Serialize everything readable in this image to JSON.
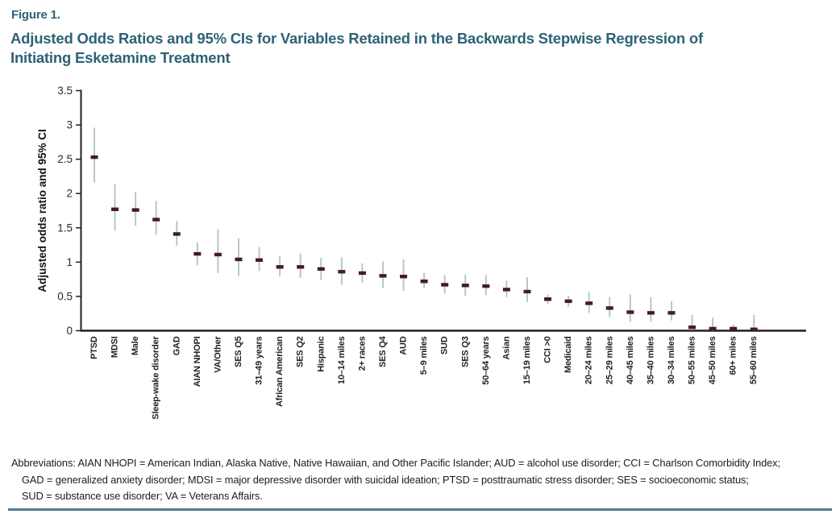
{
  "figure": {
    "label": "Figure 1.",
    "title_lines": [
      "Adjusted Odds Ratios and 95% CIs for Variables Retained in the Backwards Stepwise Regression of",
      "Initiating Esketamine Treatment"
    ]
  },
  "footnote": {
    "line1": "Abbreviations: AIAN NHOPI = American Indian, Alaska Native, Native Hawaiian, and Other Pacific Islander; AUD = alcohol use disorder; CCI = Charlson Comorbidity Index;",
    "line2": "GAD = generalized anxiety disorder; MDSI = major depressive disorder with suicidal ideation; PTSD = posttraumatic stress disorder; SES = socioeconomic status;",
    "line3": "SUD = substance use disorder; VA = Veterans Affairs."
  },
  "colors": {
    "title_teal": "#2d6276",
    "marker": "#441a2e",
    "whisker": "#b9c5cd",
    "axis": "#231f20",
    "tick_text": "#2a2a2a",
    "bottom_rule": "#567c90"
  },
  "chart_data": {
    "type": "scatter",
    "subtype": "point-estimate-with-95ci-errorbars",
    "title": "Adjusted Odds Ratios and 95% CIs for Variables Retained in the Backwards Stepwise Regression of Initiating Esketamine Treatment",
    "xlabel": "",
    "ylabel": "Adjusted odds ratio and 95% CI",
    "ylim": [
      0,
      3.5
    ],
    "yticks": [
      "0",
      "0.5",
      "1",
      "1.5",
      "2",
      "2.5",
      "3",
      "3.5"
    ],
    "grid": false,
    "legend": "none",
    "points": [
      {
        "label": "PTSD",
        "or": 2.53,
        "ci_low": 2.16,
        "ci_high": 2.96
      },
      {
        "label": "MDSI",
        "or": 1.77,
        "ci_low": 1.46,
        "ci_high": 2.14
      },
      {
        "label": "Male",
        "or": 1.76,
        "ci_low": 1.53,
        "ci_high": 2.02
      },
      {
        "label": "Sleep-wake disorder",
        "or": 1.62,
        "ci_low": 1.4,
        "ci_high": 1.89
      },
      {
        "label": "GAD",
        "or": 1.41,
        "ci_low": 1.24,
        "ci_high": 1.6
      },
      {
        "label": "AIAN NHOPI",
        "or": 1.12,
        "ci_low": 0.95,
        "ci_high": 1.29
      },
      {
        "label": "VA/Other",
        "or": 1.11,
        "ci_low": 0.84,
        "ci_high": 1.48
      },
      {
        "label": "SES Q5",
        "or": 1.04,
        "ci_low": 0.8,
        "ci_high": 1.35
      },
      {
        "label": "31–49 years",
        "or": 1.03,
        "ci_low": 0.87,
        "ci_high": 1.22
      },
      {
        "label": "African American",
        "or": 0.93,
        "ci_low": 0.79,
        "ci_high": 1.09
      },
      {
        "label": "SES Q2",
        "or": 0.93,
        "ci_low": 0.77,
        "ci_high": 1.12
      },
      {
        "label": "Hispanic",
        "or": 0.9,
        "ci_low": 0.74,
        "ci_high": 1.06
      },
      {
        "label": "10–14 miles",
        "or": 0.86,
        "ci_low": 0.67,
        "ci_high": 1.07
      },
      {
        "label": "2+ races",
        "or": 0.84,
        "ci_low": 0.7,
        "ci_high": 0.98
      },
      {
        "label": "SES Q4",
        "or": 0.8,
        "ci_low": 0.62,
        "ci_high": 1.01
      },
      {
        "label": "AUD",
        "or": 0.79,
        "ci_low": 0.58,
        "ci_high": 1.04
      },
      {
        "label": "5–9 miles",
        "or": 0.72,
        "ci_low": 0.62,
        "ci_high": 0.84
      },
      {
        "label": "SUD",
        "or": 0.67,
        "ci_low": 0.54,
        "ci_high": 0.81
      },
      {
        "label": "SES Q3",
        "or": 0.66,
        "ci_low": 0.51,
        "ci_high": 0.82
      },
      {
        "label": "50–64 years",
        "or": 0.65,
        "ci_low": 0.52,
        "ci_high": 0.81
      },
      {
        "label": "Asian",
        "or": 0.6,
        "ci_low": 0.49,
        "ci_high": 0.73
      },
      {
        "label": "15–19 miles",
        "or": 0.57,
        "ci_low": 0.42,
        "ci_high": 0.78
      },
      {
        "label": "CCI >0",
        "or": 0.46,
        "ci_low": 0.39,
        "ci_high": 0.53
      },
      {
        "label": "Medicaid",
        "or": 0.43,
        "ci_low": 0.35,
        "ci_high": 0.51
      },
      {
        "label": "20–24 miles",
        "or": 0.4,
        "ci_low": 0.26,
        "ci_high": 0.57
      },
      {
        "label": "25–29 miles",
        "or": 0.33,
        "ci_low": 0.2,
        "ci_high": 0.49
      },
      {
        "label": "40–45 miles",
        "or": 0.27,
        "ci_low": 0.13,
        "ci_high": 0.53
      },
      {
        "label": "35–40 miles",
        "or": 0.26,
        "ci_low": 0.13,
        "ci_high": 0.49
      },
      {
        "label": "30–34 miles",
        "or": 0.26,
        "ci_low": 0.15,
        "ci_high": 0.43
      },
      {
        "label": "50–55 miles",
        "or": 0.05,
        "ci_low": 0.01,
        "ci_high": 0.23
      },
      {
        "label": "45–50 miles",
        "or": 0.03,
        "ci_low": 0.0,
        "ci_high": 0.19
      },
      {
        "label": "60+ miles",
        "or": 0.03,
        "ci_low": 0.01,
        "ci_high": 0.09
      },
      {
        "label": "55–60 miles",
        "or": 0.02,
        "ci_low": 0.0,
        "ci_high": 0.23
      }
    ]
  }
}
